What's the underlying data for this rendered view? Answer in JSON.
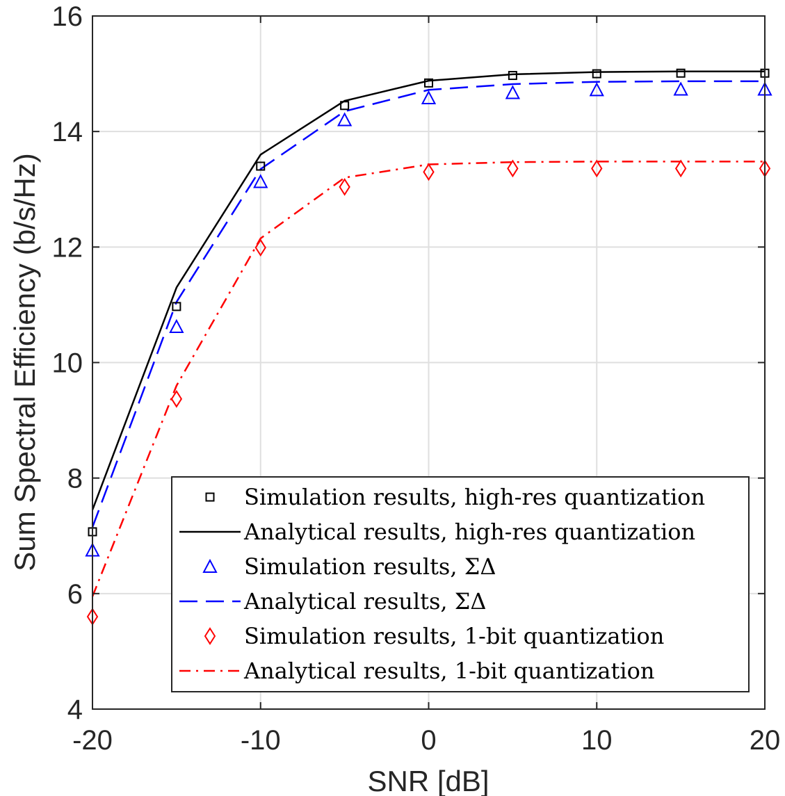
{
  "chart_data": {
    "type": "line",
    "title": "",
    "xlabel": "SNR [dB]",
    "ylabel": "Sum Spectral Efficiency (b/s/Hz)",
    "xlim": [
      -20,
      20
    ],
    "ylim": [
      4,
      16
    ],
    "xticks": [
      -20,
      -10,
      0,
      10,
      20
    ],
    "yticks": [
      4,
      6,
      8,
      10,
      12,
      14,
      16
    ],
    "xtick_labels": [
      "-20",
      "-10",
      "0",
      "10",
      "20"
    ],
    "ytick_labels": [
      "4",
      "6",
      "8",
      "10",
      "12",
      "14",
      "16"
    ],
    "grid": true,
    "legend_position": "bottom-right",
    "x": [
      -20,
      -15,
      -10,
      -5,
      0,
      5,
      10,
      15,
      20
    ],
    "series": [
      {
        "name": "Simulation results, high-res quantization",
        "style": "marker",
        "marker": "square",
        "color": "#000000",
        "values": [
          7.07,
          10.97,
          13.4,
          14.45,
          14.84,
          14.97,
          15.0,
          15.01,
          15.01
        ]
      },
      {
        "name": "Analytical results, high-res quantization",
        "style": "solid",
        "color": "#000000",
        "values": [
          7.45,
          11.3,
          13.6,
          14.53,
          14.88,
          14.99,
          15.03,
          15.04,
          15.04
        ]
      },
      {
        "name": "Simulation results, ΣΔ",
        "style": "marker",
        "marker": "triangle",
        "color": "#0000ff",
        "values": [
          6.75,
          10.62,
          13.13,
          14.2,
          14.58,
          14.67,
          14.72,
          14.73,
          14.73
        ]
      },
      {
        "name": "Analytical results, ΣΔ",
        "style": "dashed",
        "color": "#0000ff",
        "values": [
          7.15,
          11.05,
          13.35,
          14.35,
          14.72,
          14.82,
          14.86,
          14.87,
          14.87
        ]
      },
      {
        "name": "Simulation results, 1-bit quantization",
        "style": "marker",
        "marker": "diamond",
        "color": "#ff0000",
        "values": [
          5.6,
          9.37,
          11.99,
          13.04,
          13.3,
          13.36,
          13.36,
          13.36,
          13.36
        ]
      },
      {
        "name": "Analytical results, 1-bit quantization",
        "style": "dashdot",
        "color": "#ff0000",
        "values": [
          5.95,
          9.6,
          12.15,
          13.2,
          13.43,
          13.47,
          13.48,
          13.48,
          13.48
        ]
      }
    ]
  }
}
